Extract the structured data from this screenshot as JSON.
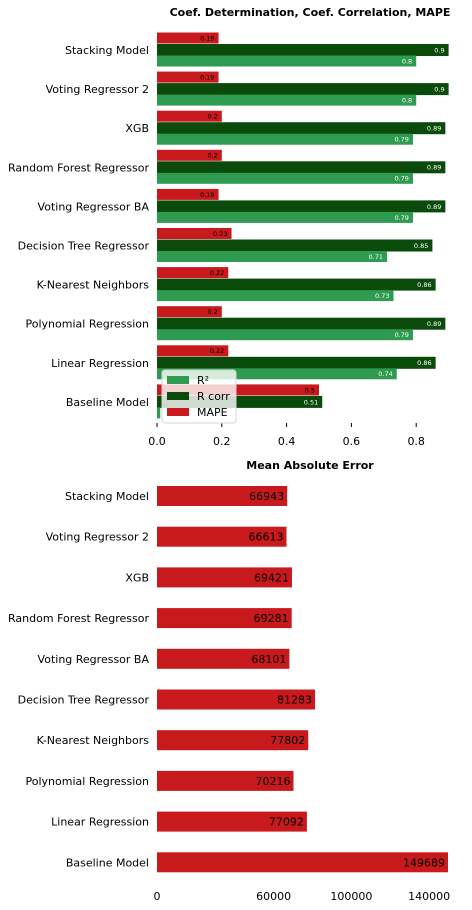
{
  "colors": {
    "r2": "#2e9b50",
    "rcorr": "#0a4a0a",
    "mape": "#c8191c"
  },
  "chart_data": [
    {
      "type": "bar",
      "orientation": "horizontal",
      "title": "Coef. Determination, Coef. Correlation, MAPE",
      "categories": [
        "Stacking Model",
        "Voting Regressor 2",
        "XGB",
        "Random Forest Regressor",
        "Voting Regressor BA",
        "Decision Tree Regressor",
        "K-Nearest Neighbors",
        "Polynomial Regression",
        "Linear Regression",
        "Baseline Model"
      ],
      "series": [
        {
          "name": "MAPE",
          "values": [
            0.19,
            0.19,
            0.2,
            0.2,
            0.19,
            0.23,
            0.22,
            0.2,
            0.22,
            0.5
          ],
          "labels": [
            "0.19",
            "0.19",
            "0.2",
            "0.2",
            "0.19",
            "0.23",
            "0.22",
            "0.2",
            "0.22",
            "0.5"
          ]
        },
        {
          "name": "R corr",
          "values": [
            0.9,
            0.9,
            0.89,
            0.89,
            0.89,
            0.85,
            0.86,
            0.89,
            0.86,
            0.51
          ],
          "labels": [
            "0.9",
            "0.9",
            "0.89",
            "0.89",
            "0.89",
            "0.85",
            "0.86",
            "0.89",
            "0.86",
            "0.51"
          ]
        },
        {
          "name": "R²",
          "values": [
            0.8,
            0.8,
            0.79,
            0.79,
            0.79,
            0.71,
            0.73,
            0.79,
            0.74,
            0.01
          ],
          "labels": [
            "0.8",
            "0.8",
            "0.79",
            "0.79",
            "0.79",
            "0.71",
            "0.73",
            "0.79",
            "0.74",
            ""
          ]
        }
      ],
      "legend_order": [
        "R²",
        "R corr",
        "MAPE"
      ],
      "xlim": [
        0,
        0.9
      ],
      "xticks": [
        "0.0",
        "0.2",
        "0.4",
        "0.6",
        "0.8"
      ],
      "legend": "lower-left"
    },
    {
      "type": "bar",
      "orientation": "horizontal",
      "title": "Mean Absolute Error",
      "categories": [
        "Stacking Model",
        "Voting Regressor 2",
        "XGB",
        "Random Forest Regressor",
        "Voting Regressor BA",
        "Decision Tree Regressor",
        "K-Nearest Neighbors",
        "Polynomial Regression",
        "Linear Regression",
        "Baseline Model"
      ],
      "values": [
        66943,
        66613,
        69421,
        69281,
        68101,
        81283,
        77802,
        70216,
        77092,
        149689
      ],
      "labels": [
        "66943",
        "66613",
        "69421",
        "69281",
        "68101",
        "81283",
        "77802",
        "70216",
        "77092",
        "149689"
      ],
      "xticks": [
        "0",
        "60000",
        "100000",
        "140000"
      ],
      "tick_values": [
        0,
        60000,
        100000,
        140000
      ],
      "xlim": [
        0,
        150000
      ]
    }
  ]
}
